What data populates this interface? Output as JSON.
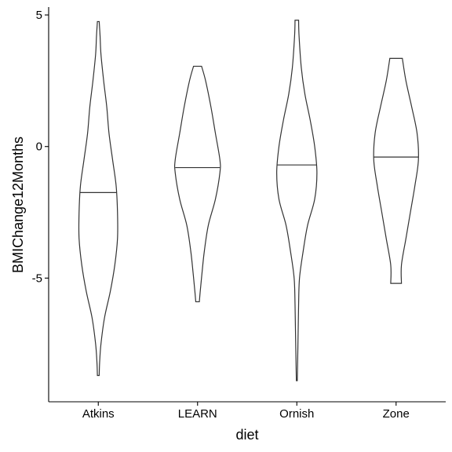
{
  "chart_data": {
    "type": "violin",
    "xlabel": "diet",
    "ylabel": "BMIChange12Months",
    "categories": [
      "Atkins",
      "LEARN",
      "Ornish",
      "Zone"
    ],
    "ylim": [
      -9.7,
      5.3
    ],
    "yticks": [
      5,
      0,
      -5
    ],
    "ytick_labels": [
      "5",
      "0",
      "-5"
    ],
    "grid": false,
    "legend": "none",
    "colors": {
      "outline": "#333333",
      "fill": "#ffffff",
      "axis": "#000000"
    },
    "series": [
      {
        "category": "Atkins",
        "median": -1.75,
        "min": -8.7,
        "max": 4.75,
        "density": [
          [
            4.75,
            0.02
          ],
          [
            4.2,
            0.04
          ],
          [
            3.5,
            0.06
          ],
          [
            2.5,
            0.12
          ],
          [
            1.5,
            0.19
          ],
          [
            0.5,
            0.24
          ],
          [
            -0.5,
            0.32
          ],
          [
            -1.5,
            0.4
          ],
          [
            -2.5,
            0.43
          ],
          [
            -3.5,
            0.43
          ],
          [
            -4.5,
            0.37
          ],
          [
            -5.5,
            0.27
          ],
          [
            -6.5,
            0.14
          ],
          [
            -7.5,
            0.06
          ],
          [
            -8.2,
            0.03
          ],
          [
            -8.7,
            0.02
          ]
        ]
      },
      {
        "category": "LEARN",
        "median": -0.8,
        "min": -5.9,
        "max": 3.05,
        "density": [
          [
            3.05,
            0.09
          ],
          [
            2.5,
            0.18
          ],
          [
            1.5,
            0.3
          ],
          [
            0.5,
            0.4
          ],
          [
            -0.5,
            0.5
          ],
          [
            -1.0,
            0.5
          ],
          [
            -2.0,
            0.4
          ],
          [
            -3.0,
            0.24
          ],
          [
            -4.0,
            0.15
          ],
          [
            -4.8,
            0.1
          ],
          [
            -5.5,
            0.06
          ],
          [
            -5.9,
            0.04
          ]
        ]
      },
      {
        "category": "Ornish",
        "median": -0.7,
        "min": -8.9,
        "max": 4.8,
        "density": [
          [
            4.8,
            0.04
          ],
          [
            4.2,
            0.05
          ],
          [
            3.0,
            0.1
          ],
          [
            2.0,
            0.18
          ],
          [
            1.0,
            0.3
          ],
          [
            0.0,
            0.4
          ],
          [
            -1.0,
            0.45
          ],
          [
            -2.0,
            0.4
          ],
          [
            -3.0,
            0.24
          ],
          [
            -4.0,
            0.14
          ],
          [
            -5.0,
            0.06
          ],
          [
            -6.0,
            0.04
          ],
          [
            -7.0,
            0.03
          ],
          [
            -8.0,
            0.02
          ],
          [
            -8.9,
            0.01
          ]
        ]
      },
      {
        "category": "Zone",
        "median": -0.4,
        "min": -5.2,
        "max": 3.35,
        "density": [
          [
            3.35,
            0.14
          ],
          [
            2.5,
            0.22
          ],
          [
            1.5,
            0.35
          ],
          [
            0.5,
            0.47
          ],
          [
            -0.5,
            0.5
          ],
          [
            -1.5,
            0.42
          ],
          [
            -2.5,
            0.32
          ],
          [
            -3.5,
            0.22
          ],
          [
            -4.5,
            0.12
          ],
          [
            -5.2,
            0.12
          ]
        ]
      }
    ]
  }
}
